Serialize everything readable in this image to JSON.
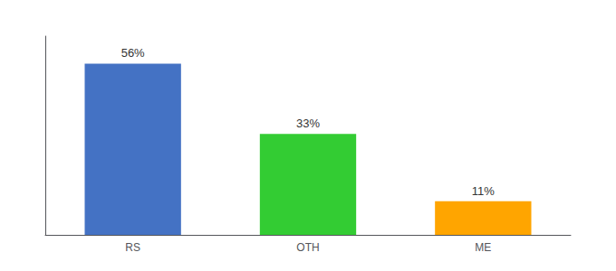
{
  "chart_data": {
    "type": "bar",
    "categories": [
      "RS",
      "OTH",
      "ME"
    ],
    "values": [
      56,
      33,
      11
    ],
    "colors": [
      "#4472C4",
      "#33CC33",
      "#FFA500"
    ],
    "ylim": [
      0,
      65
    ],
    "data_labels": true,
    "value_labels": [
      "56%",
      "33%",
      "11%"
    ],
    "tick_labels": "x",
    "grid": false
  }
}
